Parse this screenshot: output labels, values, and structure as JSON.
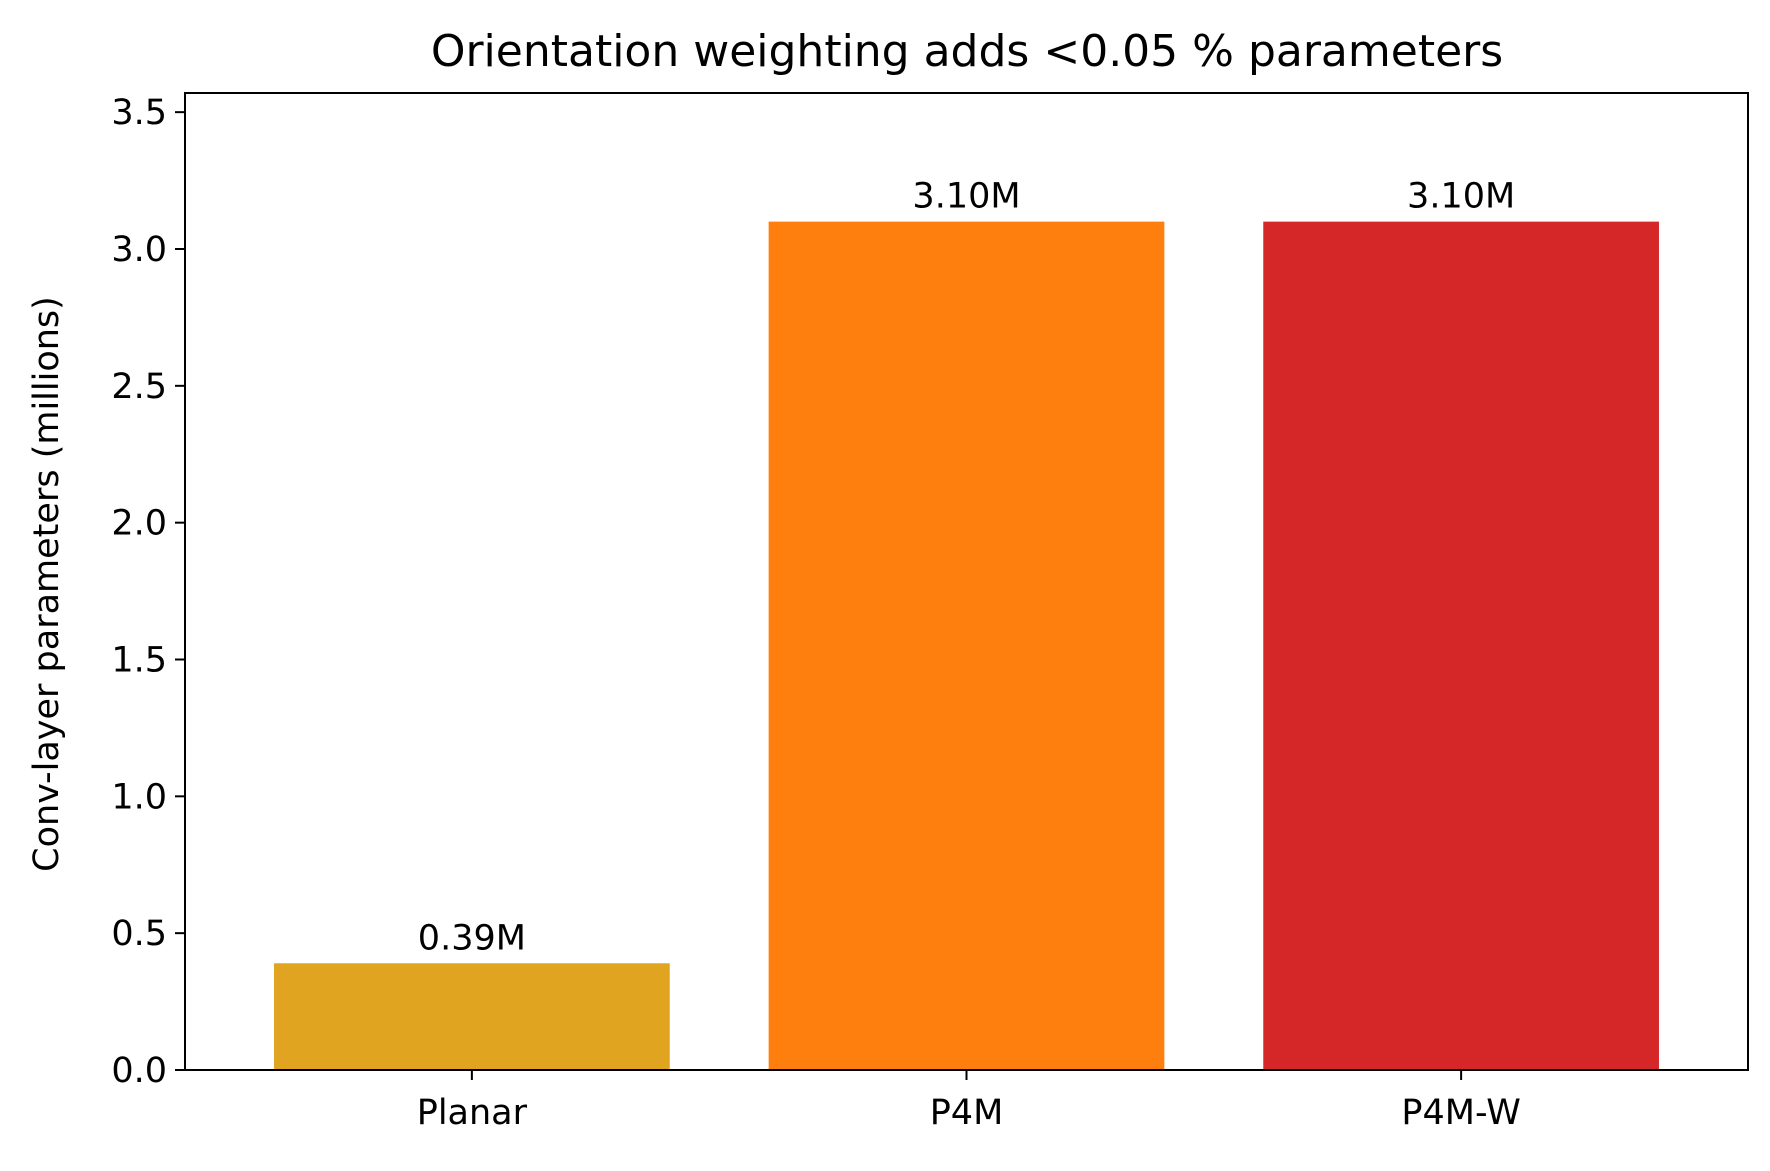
{
  "chart_data": {
    "type": "bar",
    "title": "Orientation weighting adds <0.05 % parameters",
    "xlabel": "",
    "ylabel": "Conv-layer parameters (millions)",
    "categories": [
      "Planar",
      "P4M",
      "P4M-W"
    ],
    "values": [
      0.39,
      3.1,
      3.1
    ],
    "data_labels": [
      "0.39M",
      "3.10M",
      "3.10M"
    ],
    "colors": [
      "#e0a420",
      "#ff7f0e",
      "#d62728"
    ],
    "ylim": [
      0,
      3.57
    ],
    "yticks": [
      0.0,
      0.5,
      1.0,
      1.5,
      2.0,
      2.5,
      3.0,
      3.5
    ],
    "ytick_labels": [
      "0.0",
      "0.5",
      "1.0",
      "1.5",
      "2.0",
      "2.5",
      "3.0",
      "3.5"
    ],
    "grid": false,
    "legend": "none"
  }
}
